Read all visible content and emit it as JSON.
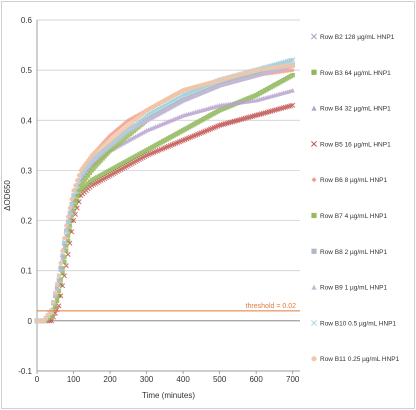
{
  "chart_data": {
    "type": "scatter",
    "xlabel": "Time (minutes)",
    "ylabel": "ΔOD650",
    "xlim": [
      0,
      720
    ],
    "ylim": [
      -0.1,
      0.6
    ],
    "xticks": [
      "0",
      "100",
      "200",
      "300",
      "400",
      "500",
      "600",
      "700"
    ],
    "yticks": [
      "-0.1",
      "0",
      "0.1",
      "0.2",
      "0.3",
      "0.4",
      "0.5",
      "0.6"
    ],
    "grid": "horizontal",
    "legend_position": "right",
    "threshold": {
      "label": "threshold = 0.02",
      "value": 0.02,
      "color": "#e07b39"
    },
    "series": [
      {
        "name": "Row B2 128 µg/mL HNP1",
        "color": "#9aa6c8",
        "marker": "x",
        "x": [
          0,
          20,
          40,
          60,
          80,
          100,
          120,
          150,
          200,
          250,
          300,
          400,
          500,
          600,
          700
        ],
        "y": [
          0.0,
          0.0,
          0.02,
          0.08,
          0.17,
          0.24,
          0.28,
          0.31,
          0.35,
          0.38,
          0.41,
          0.45,
          0.48,
          0.5,
          0.52
        ]
      },
      {
        "name": "Row B3 64 µg/mL HNP1",
        "color": "#8fb85a",
        "marker": "square",
        "x": [
          0,
          20,
          40,
          60,
          80,
          100,
          120,
          150,
          200,
          250,
          300,
          400,
          500,
          600,
          700
        ],
        "y": [
          0.0,
          0.0,
          0.01,
          0.05,
          0.14,
          0.22,
          0.26,
          0.28,
          0.3,
          0.32,
          0.34,
          0.38,
          0.42,
          0.45,
          0.49
        ]
      },
      {
        "name": "Row B4 32 µg/mL HNP1",
        "color": "#b8a3cf",
        "marker": "triangle",
        "x": [
          0,
          20,
          40,
          60,
          80,
          100,
          120,
          150,
          200,
          250,
          300,
          400,
          500,
          600,
          700
        ],
        "y": [
          0.0,
          0.0,
          0.02,
          0.08,
          0.17,
          0.24,
          0.28,
          0.31,
          0.34,
          0.36,
          0.38,
          0.41,
          0.43,
          0.44,
          0.46
        ]
      },
      {
        "name": "Row B5 16 µg/mL HNP1",
        "color": "#c0504d",
        "marker": "x",
        "x": [
          0,
          20,
          40,
          60,
          80,
          100,
          120,
          150,
          200,
          250,
          300,
          400,
          500,
          600,
          700
        ],
        "y": [
          0.0,
          0.0,
          0.0,
          0.03,
          0.11,
          0.2,
          0.25,
          0.27,
          0.29,
          0.31,
          0.33,
          0.36,
          0.39,
          0.41,
          0.43
        ]
      },
      {
        "name": "Row B6 8 µg/mL HNP1",
        "color": "#f0a090",
        "marker": "diamond",
        "x": [
          0,
          20,
          40,
          60,
          80,
          100,
          120,
          150,
          200,
          250,
          300,
          400,
          500,
          600,
          700
        ],
        "y": [
          0.0,
          0.0,
          0.02,
          0.09,
          0.19,
          0.26,
          0.3,
          0.33,
          0.37,
          0.4,
          0.42,
          0.46,
          0.48,
          0.49,
          0.5
        ]
      },
      {
        "name": "Row B7 4 µg/mL HNP1",
        "color": "#9bbb59",
        "marker": "square",
        "x": [
          0,
          20,
          40,
          60,
          80,
          100,
          120,
          150,
          200,
          250,
          300,
          400,
          500,
          600,
          700
        ],
        "y": [
          0.0,
          0.0,
          0.01,
          0.06,
          0.15,
          0.23,
          0.27,
          0.3,
          0.34,
          0.37,
          0.4,
          0.44,
          0.47,
          0.49,
          0.51
        ]
      },
      {
        "name": "Row B8 2 µg/mL HNP1",
        "color": "#b0b8c8",
        "marker": "square",
        "x": [
          0,
          20,
          40,
          60,
          80,
          100,
          120,
          150,
          200,
          250,
          300,
          400,
          500,
          600,
          700
        ],
        "y": [
          0.0,
          0.0,
          0.02,
          0.08,
          0.18,
          0.25,
          0.29,
          0.32,
          0.35,
          0.38,
          0.4,
          0.44,
          0.47,
          0.49,
          0.51
        ]
      },
      {
        "name": "Row B9 1 µg/mL HNP1",
        "color": "#c9b8de",
        "marker": "triangle",
        "x": [
          0,
          20,
          40,
          60,
          80,
          100,
          120,
          150,
          200,
          250,
          300,
          400,
          500,
          600,
          700
        ],
        "y": [
          0.0,
          0.0,
          0.02,
          0.08,
          0.17,
          0.25,
          0.29,
          0.32,
          0.35,
          0.38,
          0.4,
          0.44,
          0.47,
          0.49,
          0.51
        ]
      },
      {
        "name": "Row B10 0.5 µg/mL HNP1",
        "color": "#a8d8e0",
        "marker": "x",
        "x": [
          0,
          20,
          40,
          60,
          80,
          100,
          120,
          150,
          200,
          250,
          300,
          400,
          500,
          600,
          700
        ],
        "y": [
          0.0,
          0.0,
          0.02,
          0.09,
          0.18,
          0.25,
          0.29,
          0.32,
          0.35,
          0.38,
          0.41,
          0.45,
          0.48,
          0.5,
          0.52
        ]
      },
      {
        "name": "Row B11 0.25 µg/mL HNP1",
        "color": "#f4c7a8",
        "marker": "circle",
        "x": [
          0,
          20,
          40,
          60,
          80,
          100,
          120,
          150,
          200,
          250,
          300,
          400,
          500,
          600,
          700
        ],
        "y": [
          0.0,
          0.0,
          0.02,
          0.09,
          0.19,
          0.26,
          0.3,
          0.33,
          0.36,
          0.39,
          0.42,
          0.46,
          0.48,
          0.5,
          0.51
        ]
      }
    ]
  }
}
